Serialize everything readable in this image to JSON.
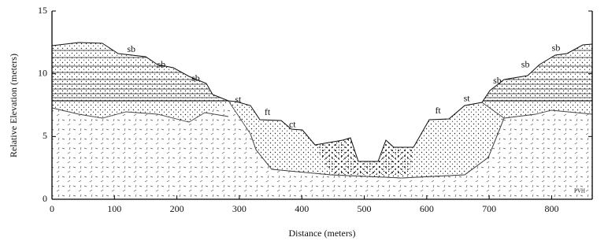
{
  "chart_data": {
    "type": "cross-section",
    "x_label": "Distance (meters)",
    "y_label": "Relative Elevation (meters)",
    "xlim": [
      0,
      865
    ],
    "ylim": [
      0,
      15
    ],
    "xticks": [
      0,
      100,
      200,
      300,
      400,
      500,
      600,
      700,
      800
    ],
    "yticks": [
      0,
      5,
      10,
      15
    ],
    "annotations": [
      {
        "text": "sb",
        "x": 127,
        "y": 11.9
      },
      {
        "text": "sb",
        "x": 175,
        "y": 10.7
      },
      {
        "text": "sb",
        "x": 230,
        "y": 9.6
      },
      {
        "text": "st",
        "x": 298,
        "y": 7.9
      },
      {
        "text": "ft",
        "x": 345,
        "y": 6.9
      },
      {
        "text": "ct",
        "x": 385,
        "y": 5.9
      },
      {
        "text": "ft",
        "x": 618,
        "y": 7.0
      },
      {
        "text": "st",
        "x": 664,
        "y": 8.0
      },
      {
        "text": "sb",
        "x": 713,
        "y": 9.4
      },
      {
        "text": "sb",
        "x": 758,
        "y": 10.7
      },
      {
        "text": "sb",
        "x": 807,
        "y": 12.0
      }
    ],
    "credit": "PVH"
  }
}
